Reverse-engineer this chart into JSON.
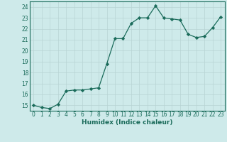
{
  "x": [
    0,
    1,
    2,
    3,
    4,
    5,
    6,
    7,
    8,
    9,
    10,
    11,
    12,
    13,
    14,
    15,
    16,
    17,
    18,
    19,
    20,
    21,
    22,
    23
  ],
  "y": [
    15.0,
    14.8,
    14.7,
    15.1,
    16.3,
    16.4,
    16.4,
    16.5,
    16.6,
    18.8,
    21.1,
    21.1,
    22.5,
    23.0,
    23.0,
    24.1,
    23.0,
    22.9,
    22.8,
    21.5,
    21.2,
    21.3,
    22.1,
    23.1
  ],
  "line_color": "#1a6b5a",
  "marker": "D",
  "marker_size": 2.2,
  "bg_color": "#ceeaea",
  "grid_color": "#b8d4d4",
  "xlabel": "Humidex (Indice chaleur)",
  "ylabel_ticks": [
    15,
    16,
    17,
    18,
    19,
    20,
    21,
    22,
    23,
    24
  ],
  "ylim": [
    14.5,
    24.5
  ],
  "xlim": [
    -0.5,
    23.5
  ],
  "tick_fontsize": 5.5,
  "xlabel_fontsize": 6.5,
  "linewidth": 0.9
}
